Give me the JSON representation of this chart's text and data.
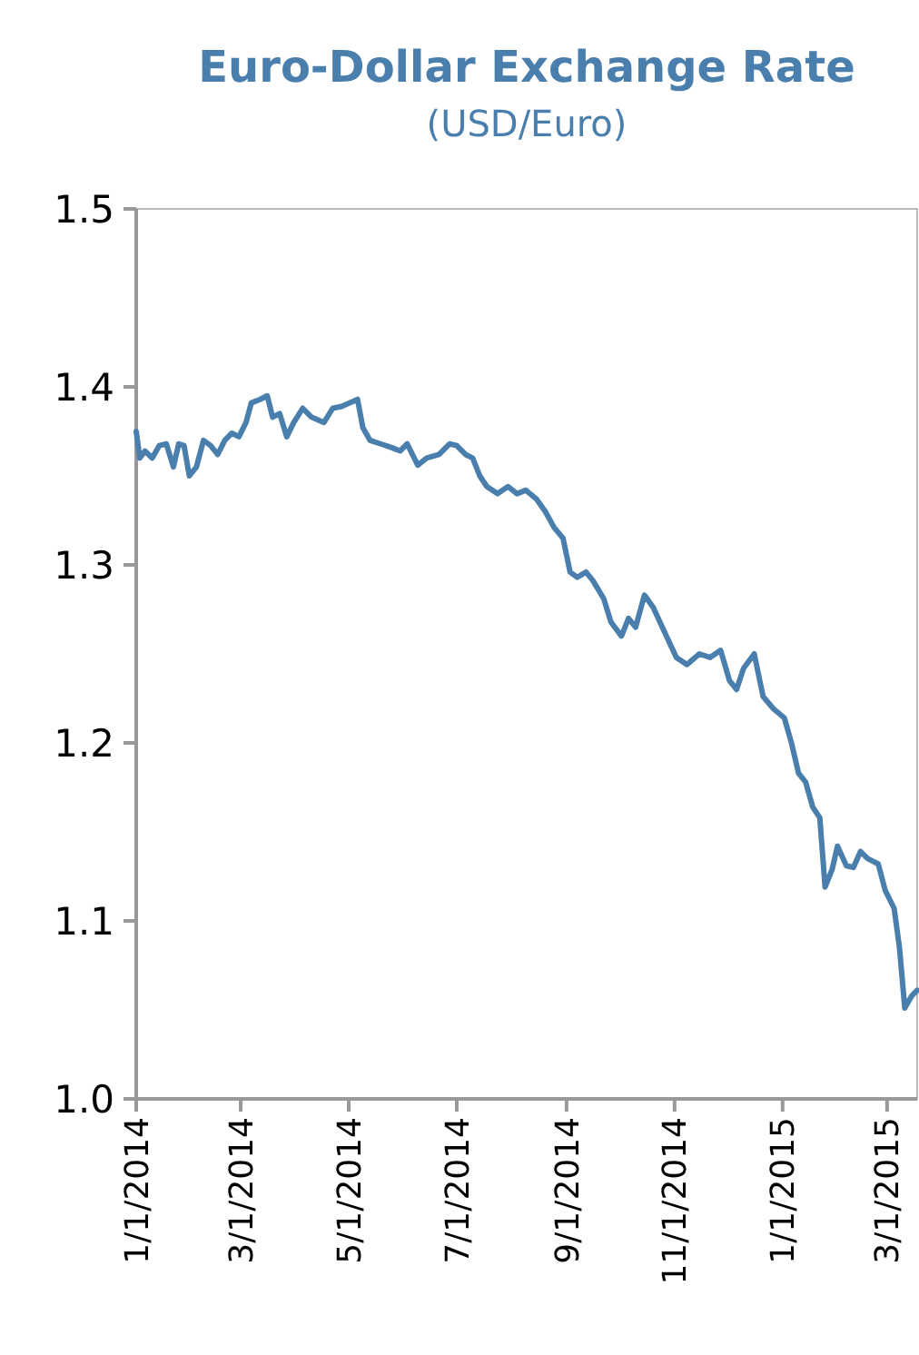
{
  "chart_data": {
    "type": "line",
    "title": "Euro-Dollar Exchange Rate",
    "subtitle": "(USD/Euro)",
    "xlim": [
      "2014-01-01",
      "2015-03-18"
    ],
    "xticks": [
      {
        "value": "2014-01-01",
        "label": "1/1/2014"
      },
      {
        "value": "2014-03-01",
        "label": "3/1/2014"
      },
      {
        "value": "2014-05-01",
        "label": "5/1/2014"
      },
      {
        "value": "2014-07-01",
        "label": "7/1/2014"
      },
      {
        "value": "2014-09-01",
        "label": "9/1/2014"
      },
      {
        "value": "2014-11-01",
        "label": "11/1/2014"
      },
      {
        "value": "2015-01-01",
        "label": "1/1/2015"
      },
      {
        "value": "2015-03-01",
        "label": "3/1/2015"
      }
    ],
    "ylim": [
      1.0,
      1.5
    ],
    "yticks": [
      {
        "value": 1,
        "label": "1.0"
      },
      1.1,
      1.2,
      1.3,
      1.4,
      1.5
    ],
    "grid": false,
    "marker": "none",
    "line_style": "solid",
    "x": [
      "2014-01-01",
      "2014-01-03",
      "2014-01-06",
      "2014-01-10",
      "2014-01-14",
      "2014-01-18",
      "2014-01-22",
      "2014-01-25",
      "2014-01-28",
      "2014-01-31",
      "2014-02-04",
      "2014-02-08",
      "2014-02-12",
      "2014-02-16",
      "2014-02-20",
      "2014-02-24",
      "2014-02-28",
      "2014-03-04",
      "2014-03-07",
      "2014-03-12",
      "2014-03-16",
      "2014-03-19",
      "2014-03-23",
      "2014-03-27",
      "2014-03-31",
      "2014-04-05",
      "2014-04-10",
      "2014-04-17",
      "2014-04-22",
      "2014-04-27",
      "2014-05-06",
      "2014-05-09",
      "2014-05-13",
      "2014-05-19",
      "2014-05-25",
      "2014-05-30",
      "2014-06-03",
      "2014-06-09",
      "2014-06-14",
      "2014-06-21",
      "2014-06-27",
      "2014-07-01",
      "2014-07-06",
      "2014-07-10",
      "2014-07-14",
      "2014-07-18",
      "2014-07-24",
      "2014-07-30",
      "2014-08-04",
      "2014-08-09",
      "2014-08-15",
      "2014-08-20",
      "2014-08-25",
      "2014-08-30",
      "2014-09-03",
      "2014-09-07",
      "2014-09-12",
      "2014-09-16",
      "2014-09-22",
      "2014-09-26",
      "2014-10-02",
      "2014-10-06",
      "2014-10-10",
      "2014-10-15",
      "2014-10-20",
      "2014-10-26",
      "2014-11-02",
      "2014-11-08",
      "2014-11-15",
      "2014-11-21",
      "2014-11-27",
      "2014-12-02",
      "2014-12-06",
      "2014-12-10",
      "2014-12-16",
      "2014-12-21",
      "2014-12-27",
      "2015-01-02",
      "2015-01-06",
      "2015-01-10",
      "2015-01-14",
      "2015-01-18",
      "2015-01-22",
      "2015-01-25",
      "2015-01-29",
      "2015-02-01",
      "2015-02-06",
      "2015-02-10",
      "2015-02-14",
      "2015-02-18",
      "2015-02-24",
      "2015-02-28",
      "2015-03-05",
      "2015-03-08",
      "2015-03-11",
      "2015-03-15",
      "2015-03-18"
    ],
    "series": [
      {
        "color": "#4a7fad",
        "values": [
          1.375,
          1.36,
          1.364,
          1.36,
          1.367,
          1.368,
          1.355,
          1.368,
          1.367,
          1.35,
          1.355,
          1.37,
          1.367,
          1.362,
          1.37,
          1.374,
          1.372,
          1.38,
          1.391,
          1.393,
          1.395,
          1.383,
          1.385,
          1.372,
          1.38,
          1.388,
          1.383,
          1.38,
          1.388,
          1.389,
          1.393,
          1.377,
          1.37,
          1.368,
          1.366,
          1.364,
          1.368,
          1.356,
          1.36,
          1.362,
          1.368,
          1.367,
          1.362,
          1.36,
          1.35,
          1.344,
          1.34,
          1.344,
          1.34,
          1.342,
          1.337,
          1.33,
          1.321,
          1.315,
          1.296,
          1.293,
          1.296,
          1.291,
          1.281,
          1.268,
          1.26,
          1.27,
          1.265,
          1.283,
          1.276,
          1.263,
          1.248,
          1.244,
          1.25,
          1.248,
          1.252,
          1.235,
          1.23,
          1.242,
          1.25,
          1.226,
          1.219,
          1.214,
          1.2,
          1.183,
          1.178,
          1.164,
          1.158,
          1.119,
          1.129,
          1.142,
          1.131,
          1.13,
          1.139,
          1.135,
          1.132,
          1.117,
          1.107,
          1.085,
          1.051,
          1.058,
          1.061
        ]
      }
    ]
  }
}
